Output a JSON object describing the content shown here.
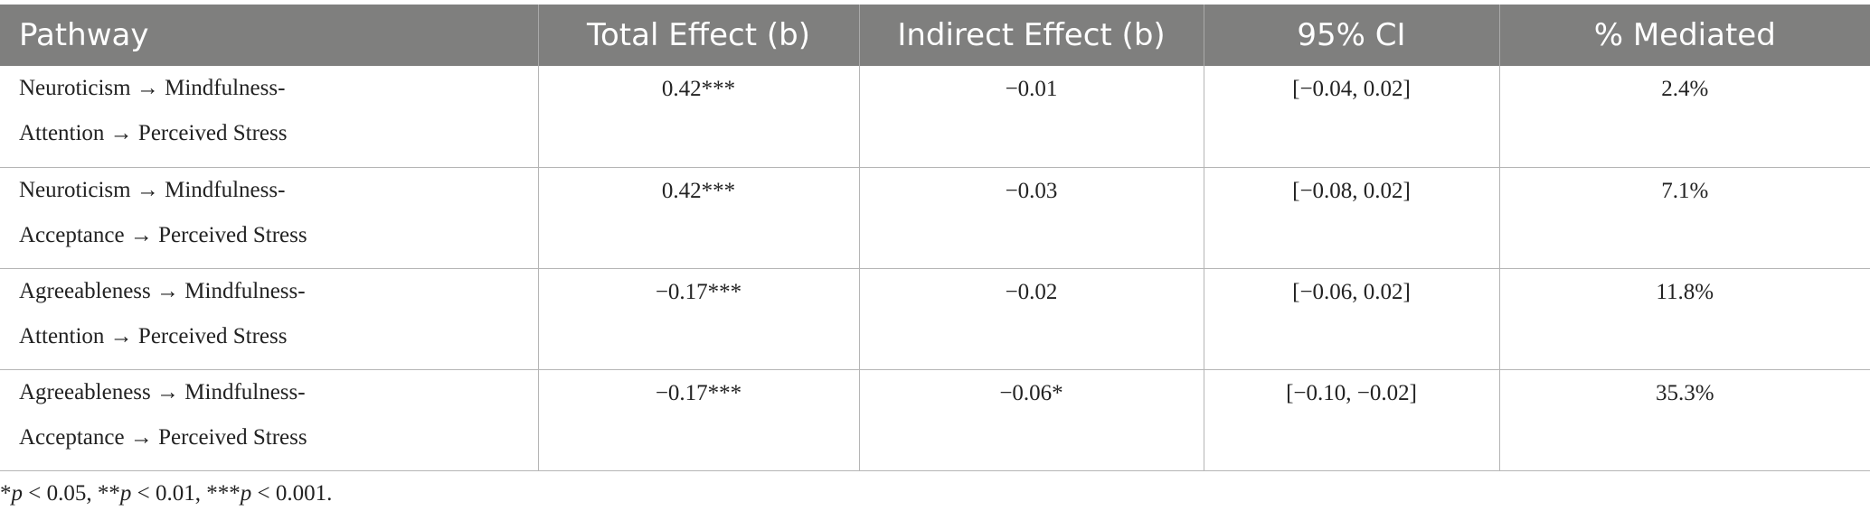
{
  "table": {
    "headers": [
      "Pathway",
      "Total Effect (b)",
      "Indirect Effect (b)",
      "95% CI",
      "% Mediated"
    ],
    "rows": [
      {
        "pathway_line1": "Neuroticism → Mindfulness-",
        "pathway_line2": "Attention → Perceived Stress",
        "total_effect": "0.42***",
        "indirect_effect": "−0.01",
        "ci": "[−0.04, 0.02]",
        "mediated": "2.4%"
      },
      {
        "pathway_line1": "Neuroticism → Mindfulness-",
        "pathway_line2": "Acceptance → Perceived Stress",
        "total_effect": "0.42***",
        "indirect_effect": "−0.03",
        "ci": "[−0.08, 0.02]",
        "mediated": "7.1%"
      },
      {
        "pathway_line1": "Agreeableness → Mindfulness-",
        "pathway_line2": "Attention → Perceived Stress",
        "total_effect": "−0.17***",
        "indirect_effect": "−0.02",
        "ci": "[−0.06, 0.02]",
        "mediated": "11.8%"
      },
      {
        "pathway_line1": "Agreeableness → Mindfulness-",
        "pathway_line2": "Acceptance → Perceived Stress",
        "total_effect": "−0.17***",
        "indirect_effect": "−0.06*",
        "ci": "[−0.10, −0.02]",
        "mediated": "35.3%"
      }
    ]
  },
  "footnote": {
    "s1": "*",
    "p1": "p",
    "t1": " < 0.05, **",
    "p2": "p",
    "t2": " < 0.01, ***",
    "p3": "p",
    "t3": " < 0.001."
  },
  "colors": {
    "header_bg": "#7f7f7e",
    "header_text": "#ffffff",
    "grid": "#b5b5b5"
  }
}
